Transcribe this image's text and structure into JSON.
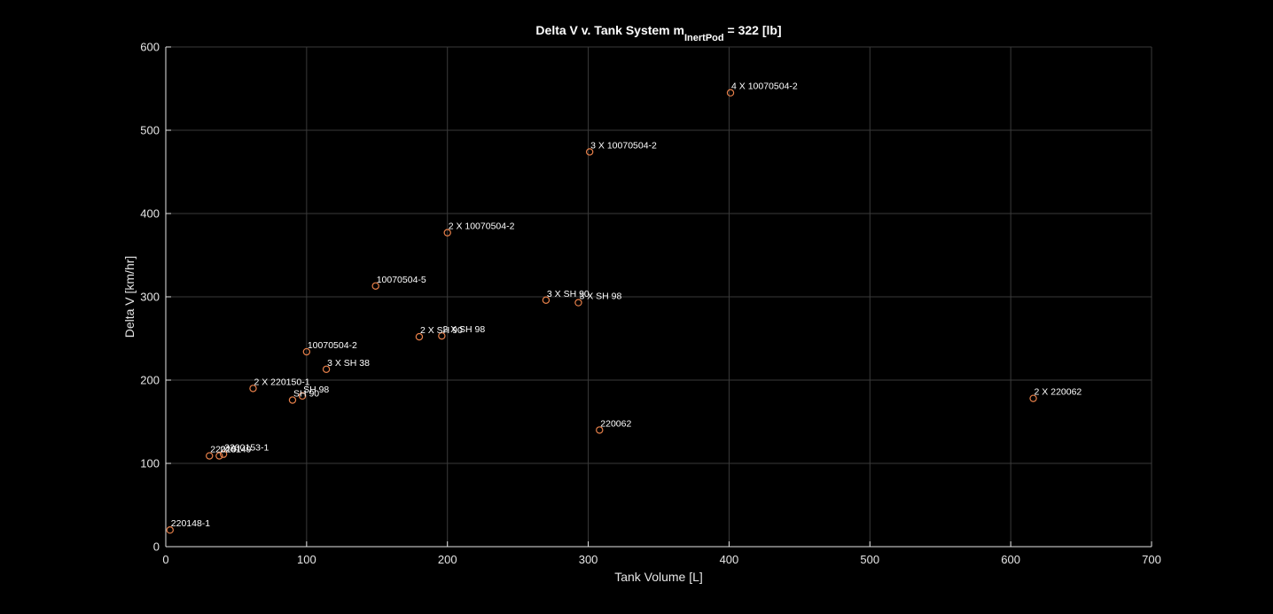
{
  "chart_data": {
    "type": "scatter",
    "title_parts": {
      "prefix": "Delta V v. Tank System m",
      "subscript": "InertPod",
      "suffix": " = 322 [lb]"
    },
    "xlabel": "Tank Volume [L]",
    "ylabel": "Delta V [km/hr]",
    "xlim": [
      0,
      700
    ],
    "ylim": [
      0,
      600
    ],
    "xticks": [
      0,
      100,
      200,
      300,
      400,
      500,
      600,
      700
    ],
    "yticks": [
      0,
      100,
      200,
      300,
      400,
      500,
      600
    ],
    "grid": true,
    "marker": "circle-open",
    "marker_color": "#e8804a",
    "background": "#000000",
    "points": [
      {
        "label": "220148-1",
        "x": 3,
        "y": 20
      },
      {
        "label": "220151",
        "x": 31,
        "y": 109
      },
      {
        "label": "220149",
        "x": 38,
        "y": 109
      },
      {
        "label": "2200153-1",
        "x": 41,
        "y": 111
      },
      {
        "label": "2 X 220150-1",
        "x": 62,
        "y": 190
      },
      {
        "label": "SH 90",
        "x": 90,
        "y": 176
      },
      {
        "label": "SH 98",
        "x": 97,
        "y": 181
      },
      {
        "label": "10070504-2",
        "x": 100,
        "y": 234
      },
      {
        "label": "3 X SH 38",
        "x": 114,
        "y": 213
      },
      {
        "label": "10070504-5",
        "x": 149,
        "y": 313
      },
      {
        "label": "2 X SH 90",
        "x": 180,
        "y": 252
      },
      {
        "label": "2 X SH 98",
        "x": 196,
        "y": 253
      },
      {
        "label": "2 X 10070504-2",
        "x": 200,
        "y": 377
      },
      {
        "label": "3 X SH 90",
        "x": 270,
        "y": 296
      },
      {
        "label": "3 X SH 98",
        "x": 293,
        "y": 293
      },
      {
        "label": "3 X 10070504-2",
        "x": 301,
        "y": 474
      },
      {
        "label": "220062",
        "x": 308,
        "y": 140
      },
      {
        "label": "4 X 10070504-2",
        "x": 401,
        "y": 545
      },
      {
        "label": "2 X 220062",
        "x": 616,
        "y": 178
      }
    ]
  }
}
